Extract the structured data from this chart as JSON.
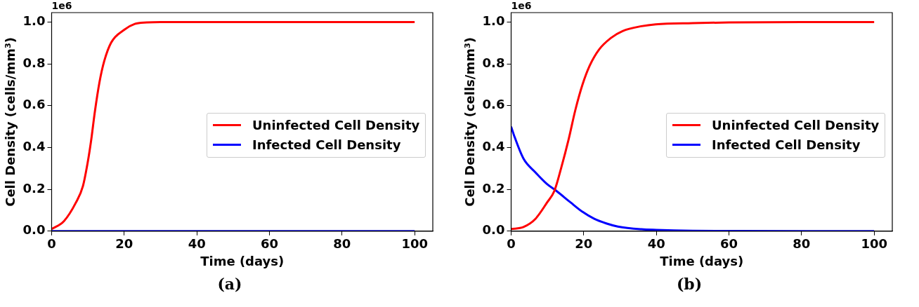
{
  "chart_data": [
    {
      "type": "line",
      "title": "(a)",
      "xlabel": "Time (days)",
      "ylabel": "Cell Density (cells/mm³)",
      "annotations": [
        "1e6"
      ],
      "legend": "center right",
      "grid": false,
      "xlim": [
        0,
        105
      ],
      "xticks": [
        0,
        20,
        40,
        60,
        80,
        100
      ],
      "ylim": [
        0,
        1.045
      ],
      "yticks": [
        {
          "value": 0,
          "label": "0.0"
        },
        {
          "value": 0.2,
          "label": "0.2"
        },
        {
          "value": 0.4,
          "label": "0.4"
        },
        {
          "value": 0.6,
          "label": "0.6"
        },
        {
          "value": 0.8,
          "label": "0.8"
        },
        {
          "value": 1,
          "label": "1.0"
        }
      ],
      "series": [
        {
          "name": "Uninfected Cell Density",
          "color": "#ff0000",
          "x": [
            0,
            3.4,
            6.7,
            8.6,
            9.9,
            10.9,
            11.9,
            13.2,
            14.5,
            16.4,
            20,
            22.9,
            26.2,
            30,
            40,
            60,
            80,
            100
          ],
          "values": [
            0.01,
            0.048,
            0.137,
            0.214,
            0.325,
            0.436,
            0.57,
            0.714,
            0.814,
            0.902,
            0.963,
            0.991,
            0.998,
            1,
            1,
            1,
            1,
            1
          ]
        },
        {
          "name": "Infected Cell Density",
          "color": "#0000ff",
          "x": [
            0,
            100
          ],
          "values": [
            0,
            0
          ]
        }
      ]
    },
    {
      "type": "line",
      "title": "(b)",
      "xlabel": "Time (days)",
      "ylabel": "Cell Density (cells/mm³)",
      "annotations": [
        "1e6"
      ],
      "legend": "center right",
      "grid": false,
      "xlim": [
        0,
        105
      ],
      "xticks": [
        0,
        20,
        40,
        60,
        80,
        100
      ],
      "ylim": [
        0,
        1.045
      ],
      "yticks": [
        {
          "value": 0,
          "label": "0.0"
        },
        {
          "value": 0.2,
          "label": "0.2"
        },
        {
          "value": 0.4,
          "label": "0.4"
        },
        {
          "value": 0.6,
          "label": "0.6"
        },
        {
          "value": 0.8,
          "label": "0.8"
        },
        {
          "value": 1,
          "label": "1.0"
        }
      ],
      "series": [
        {
          "name": "Uninfected Cell Density",
          "color": "#ff0000",
          "x": [
            0,
            3.4,
            6.7,
            9.9,
            11.9,
            13.8,
            15.8,
            17.7,
            19.7,
            21.6,
            24.2,
            27.5,
            30.7,
            35.9,
            39.8,
            50,
            60,
            80,
            100
          ],
          "values": [
            0.01,
            0.02,
            0.059,
            0.137,
            0.192,
            0.303,
            0.436,
            0.58,
            0.703,
            0.79,
            0.868,
            0.924,
            0.957,
            0.98,
            0.989,
            0.995,
            0.998,
            1,
            1
          ]
        },
        {
          "name": "Infected Cell Density",
          "color": "#0000ff",
          "x": [
            0,
            0.8,
            3.4,
            6.7,
            9.9,
            12.5,
            16.4,
            19.7,
            22.9,
            26.2,
            29.4,
            35.9,
            40,
            50,
            60,
            100
          ],
          "values": [
            0.5,
            0.458,
            0.347,
            0.281,
            0.225,
            0.192,
            0.137,
            0.092,
            0.059,
            0.037,
            0.022,
            0.009,
            0.006,
            0.002,
            0.001,
            0
          ]
        }
      ]
    }
  ]
}
